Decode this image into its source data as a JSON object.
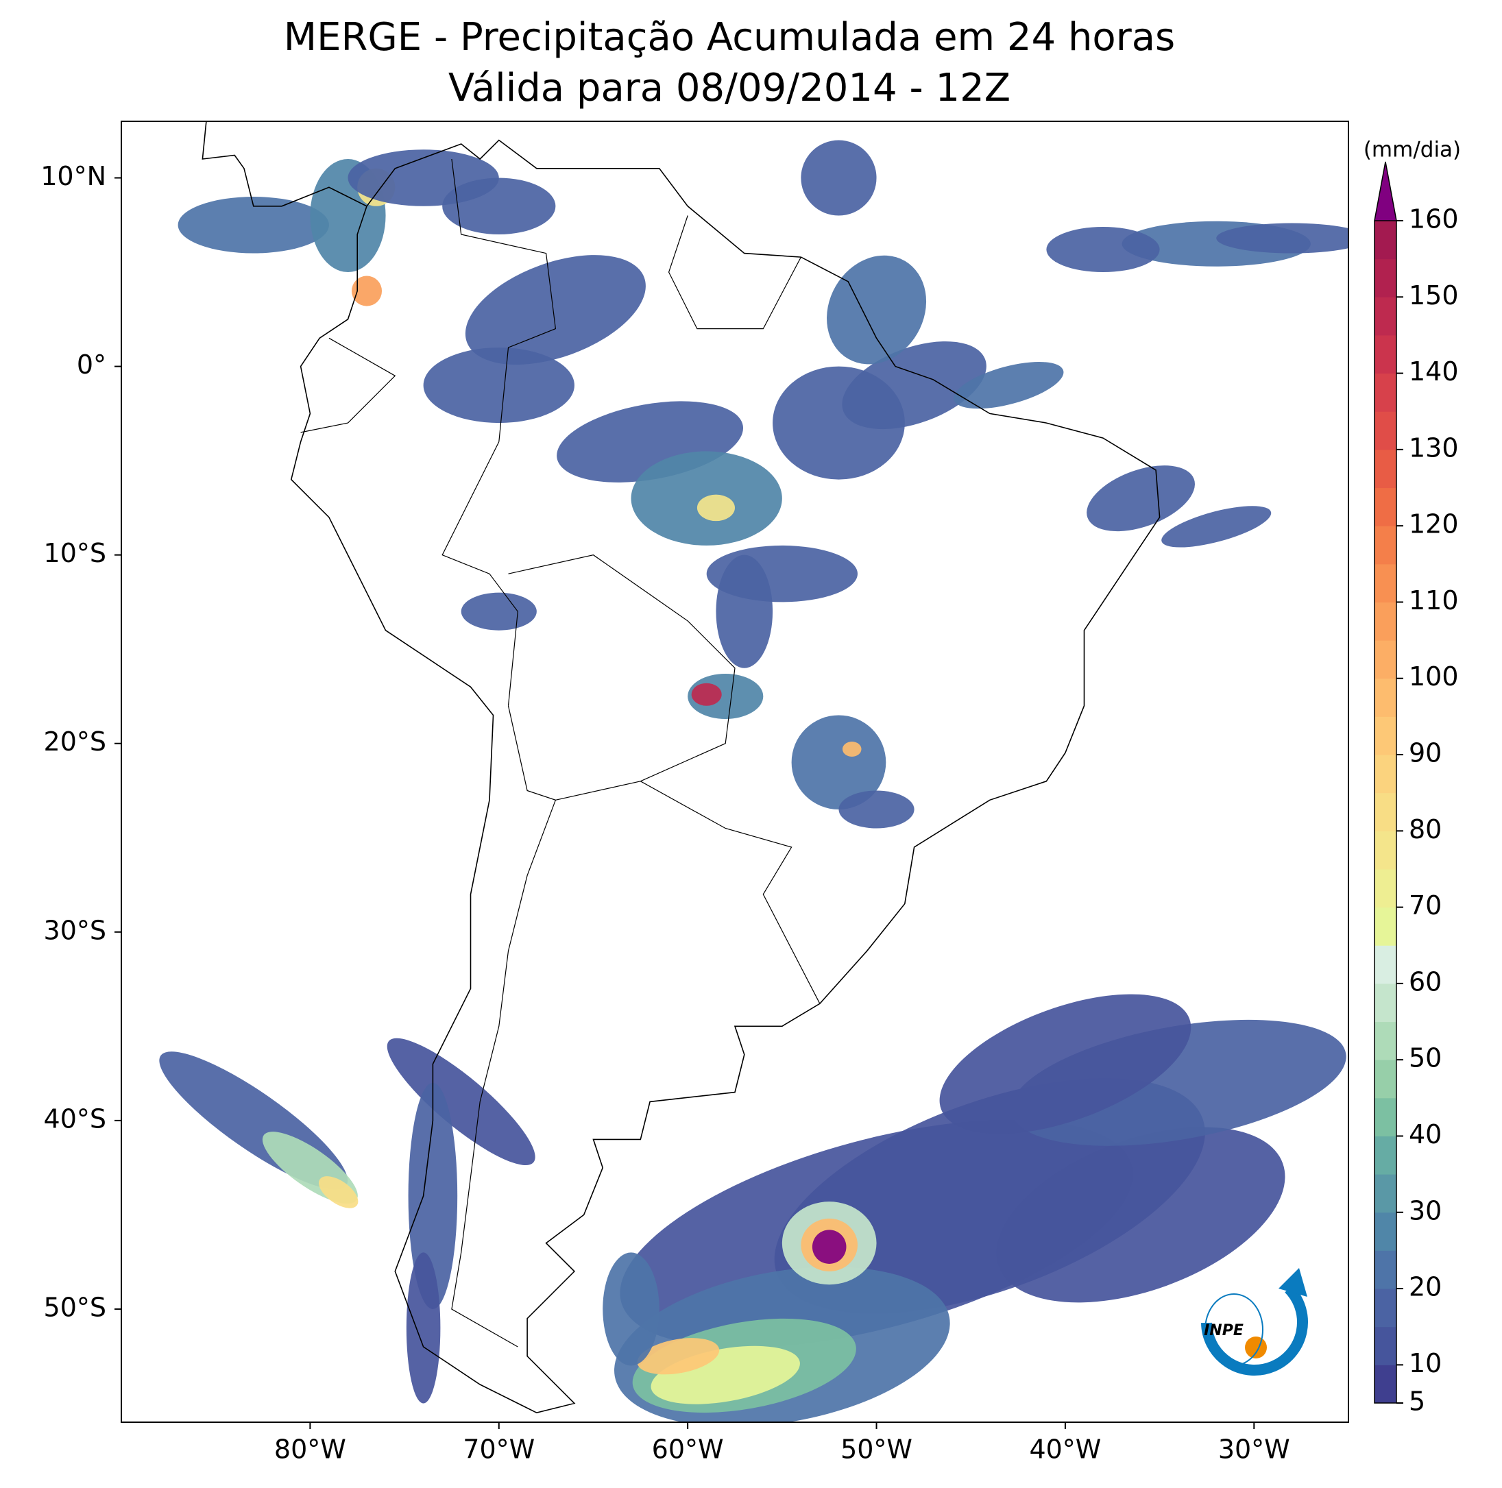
{
  "chart_data": {
    "type": "map",
    "title": "MERGE - Precipitação Acumulada em 24 horas",
    "subtitle": "Válida para 08/09/2014 - 12Z",
    "xlim": [
      -90,
      -25
    ],
    "ylim": [
      -56,
      13
    ],
    "xticks": [
      {
        "value": -80,
        "label": "80°W"
      },
      {
        "value": -70,
        "label": "70°W"
      },
      {
        "value": -60,
        "label": "60°W"
      },
      {
        "value": -50,
        "label": "50°W"
      },
      {
        "value": -40,
        "label": "40°W"
      },
      {
        "value": -30,
        "label": "30°W"
      }
    ],
    "yticks": [
      {
        "value": 10,
        "label": "10°N"
      },
      {
        "value": 0,
        "label": "0°"
      },
      {
        "value": -10,
        "label": "10°S"
      },
      {
        "value": -20,
        "label": "20°S"
      },
      {
        "value": -30,
        "label": "30°S"
      },
      {
        "value": -40,
        "label": "40°S"
      },
      {
        "value": -50,
        "label": "50°S"
      }
    ],
    "colorbar": {
      "label": "(mm/dia)",
      "lim": [
        5,
        160
      ],
      "levels": [
        5,
        10,
        15,
        20,
        25,
        30,
        35,
        40,
        45,
        50,
        55,
        60,
        65,
        70,
        75,
        80,
        85,
        90,
        95,
        100,
        105,
        110,
        115,
        120,
        125,
        130,
        135,
        140,
        145,
        150,
        155,
        160
      ],
      "colors": [
        "#3f3f8f",
        "#46559c",
        "#4b63a3",
        "#4e74a8",
        "#5086a8",
        "#5a98a6",
        "#66aca4",
        "#7cc0a2",
        "#97cfa9",
        "#aedbb8",
        "#c5e5cc",
        "#d9eee2",
        "#e6f598",
        "#eeee92",
        "#f4e58b",
        "#f8dd85",
        "#fbd37e",
        "#fdc876",
        "#fdbc6e",
        "#fcae65",
        "#fa9f5b",
        "#f89052",
        "#f47f4a",
        "#ef6d45",
        "#e85c45",
        "#e04d48",
        "#d7414b",
        "#cb344d",
        "#be2a4f",
        "#b1214f",
        "#a31a50"
      ],
      "extend_color": "#800080",
      "ticks": [
        5,
        10,
        20,
        30,
        40,
        50,
        60,
        70,
        80,
        90,
        100,
        110,
        120,
        130,
        140,
        150,
        160
      ]
    },
    "logo": "INPE"
  }
}
